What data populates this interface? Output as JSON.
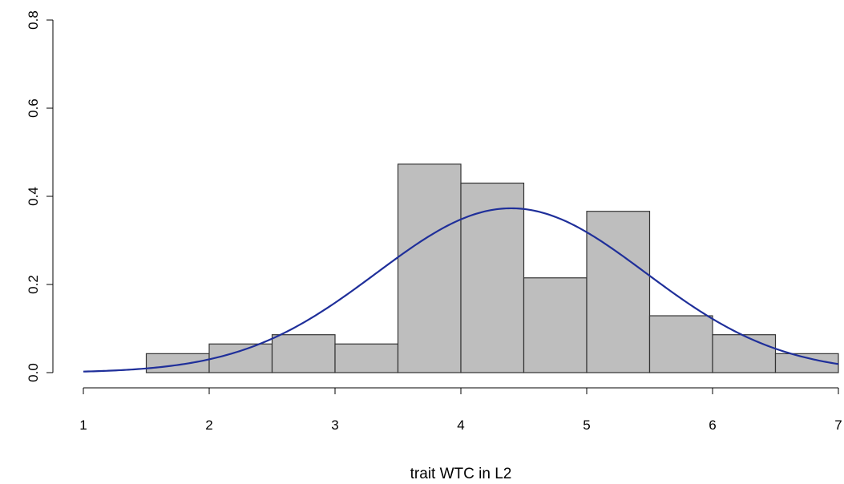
{
  "chart_data": {
    "type": "bar",
    "subtype": "histogram-with-density-curve",
    "xlabel": "trait WTC in L2",
    "ylabel": "",
    "xlim": [
      1,
      7
    ],
    "ylim": [
      0,
      0.8
    ],
    "x_ticks": [
      "1",
      "2",
      "3",
      "4",
      "5",
      "6",
      "7"
    ],
    "y_ticks": [
      "0.0",
      "0.2",
      "0.4",
      "0.6",
      "0.8"
    ],
    "bins": [
      {
        "start": 1.5,
        "end": 2.0,
        "density": 0.043
      },
      {
        "start": 2.0,
        "end": 2.5,
        "density": 0.065
      },
      {
        "start": 2.5,
        "end": 3.0,
        "density": 0.086
      },
      {
        "start": 3.0,
        "end": 3.5,
        "density": 0.065
      },
      {
        "start": 3.5,
        "end": 4.0,
        "density": 0.473
      },
      {
        "start": 4.0,
        "end": 4.5,
        "density": 0.43
      },
      {
        "start": 4.5,
        "end": 5.0,
        "density": 0.215
      },
      {
        "start": 5.0,
        "end": 5.5,
        "density": 0.366
      },
      {
        "start": 5.5,
        "end": 6.0,
        "density": 0.129
      },
      {
        "start": 6.0,
        "end": 6.5,
        "density": 0.086
      },
      {
        "start": 6.5,
        "end": 7.0,
        "density": 0.043
      }
    ],
    "density_curve": {
      "distribution": "normal",
      "mean": 4.4,
      "sd": 1.07,
      "x_range": [
        1,
        7
      ]
    },
    "grid": false,
    "legend": "none",
    "colors": {
      "bar_fill": "#bebebe",
      "bar_stroke": "#333333",
      "curve": "#1f2f9a"
    }
  }
}
